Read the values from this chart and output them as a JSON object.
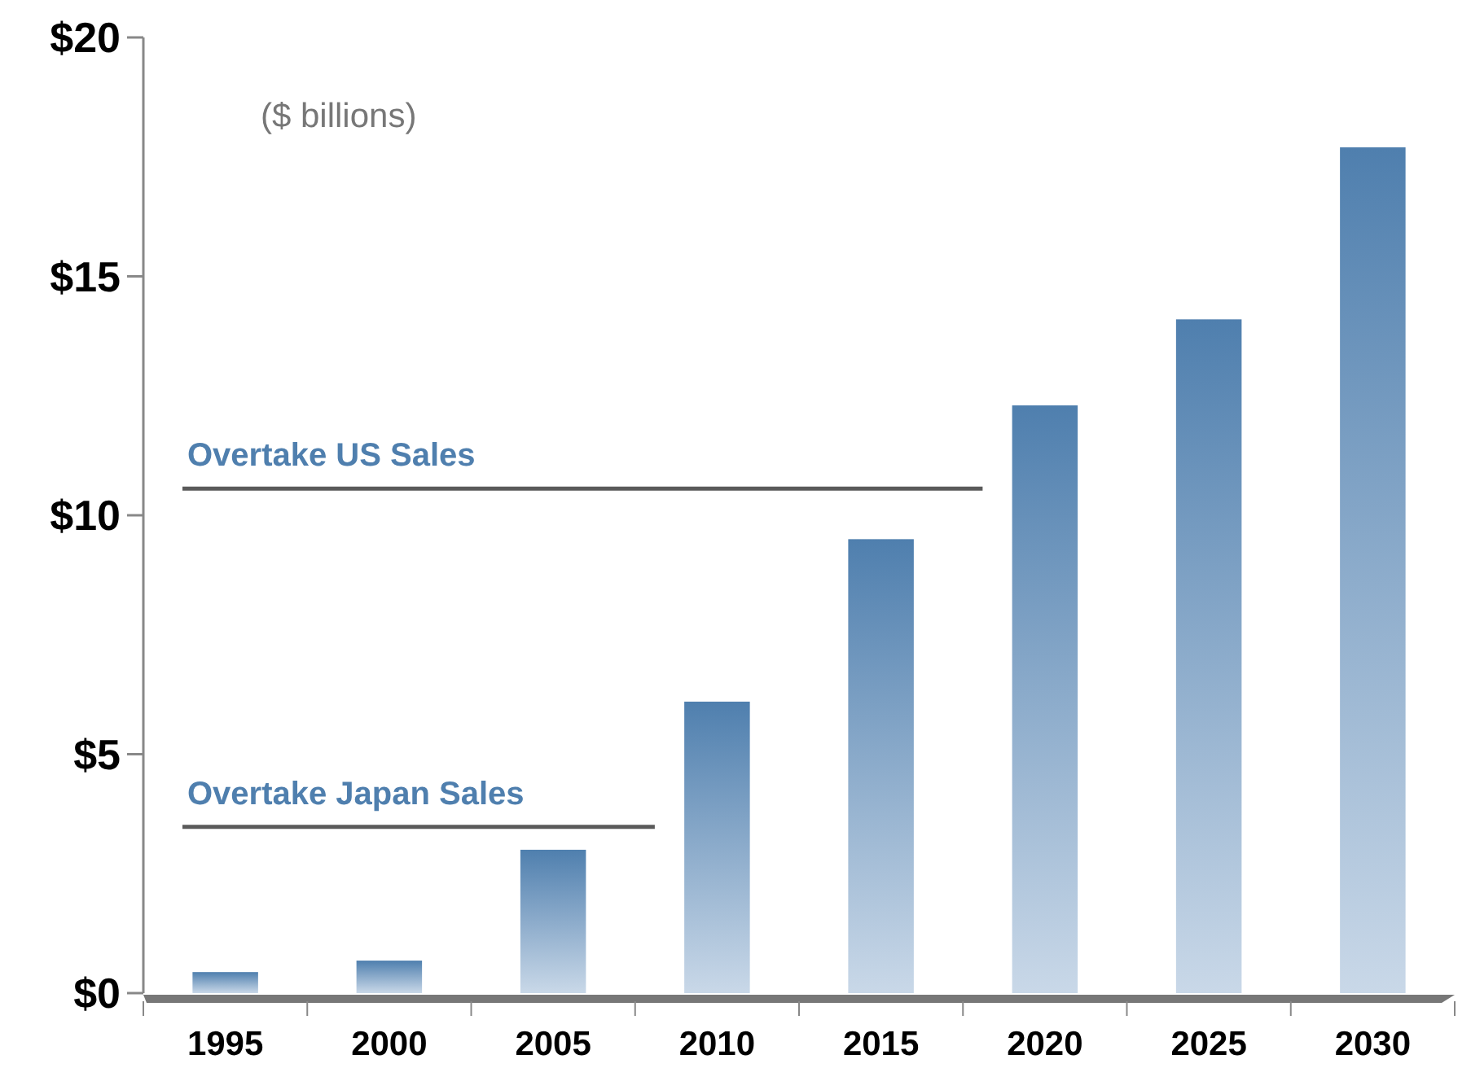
{
  "chart_data": {
    "type": "bar",
    "subtitle": "($ billions)",
    "categories": [
      "1995",
      "2000",
      "2005",
      "2010",
      "2015",
      "2020",
      "2025",
      "2030"
    ],
    "values": [
      0.44,
      0.68,
      3.0,
      6.1,
      9.5,
      12.3,
      14.1,
      17.7
    ],
    "color": "#4f7fae",
    "ylim": [
      0,
      20
    ],
    "yticks": [
      {
        "value": 0,
        "label": "$0"
      },
      {
        "value": 5,
        "label": "$5"
      },
      {
        "value": 10,
        "label": "$10"
      },
      {
        "value": 15,
        "label": "$15"
      },
      {
        "value": 20,
        "label": "$20"
      }
    ],
    "ref_lines": [
      {
        "axis": "y",
        "value": 10.56,
        "label": "Overtake US Sales",
        "color": "#5a5a5a"
      },
      {
        "axis": "y",
        "value": 3.48,
        "label": "Overtake Japan Sales",
        "color": "#5a5a5a"
      }
    ],
    "grid": false
  }
}
